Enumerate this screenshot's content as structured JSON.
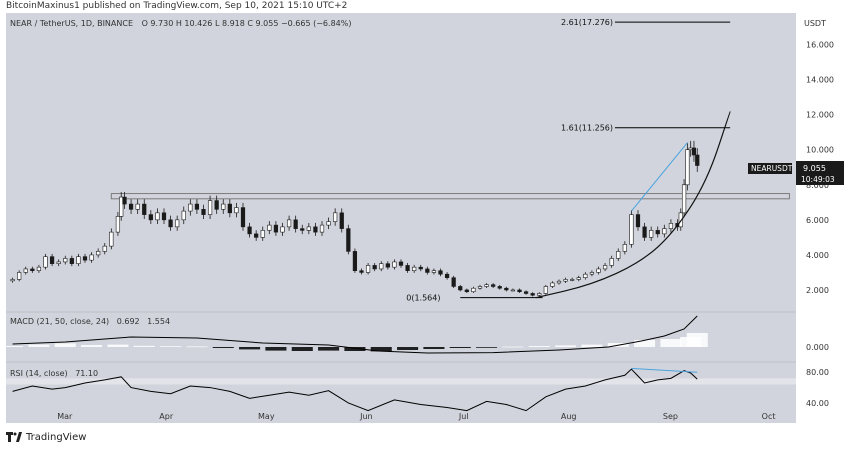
{
  "header": {
    "publisher_line": "BitcoinMaxinus1 published on TradingView.com, Sep 10, 2021 15:10 UTC+2"
  },
  "footer": {
    "brand": "TradingView"
  },
  "colors": {
    "background": "#d1d4dc",
    "candle": "#1a1a1a",
    "fib_line": "#000000",
    "resistance": "#7b7b7b",
    "trendline_blue": "#4aa3df",
    "macd_hist_pos": "#ffffff",
    "macd_hist_neg": "#000000",
    "price_tag_bg": "#1a1a1a",
    "price_tag_text": "#ffffff"
  },
  "chart_data": {
    "type": "candlestick",
    "symbol_line": {
      "pair": "NEAR / TetherUS, 1D, BINANCE",
      "ohlc": "O 9.730  H 10.426  L 8.918  C 9.055  −0.665 (−6.84%)"
    },
    "y_axis": {
      "unit": "USDT",
      "ticks": [
        "16.000",
        "14.000",
        "12.000",
        "10.000",
        "8.000",
        "6.000",
        "4.000",
        "2.000"
      ],
      "tick_values": [
        16,
        14,
        12,
        10,
        8,
        6,
        4,
        2
      ],
      "ylim": [
        0.8,
        17.8
      ]
    },
    "x_axis": {
      "tick_labels": [
        "Mar",
        "Apr",
        "May",
        "Jun",
        "Jul",
        "Aug",
        "Sep",
        "Oct"
      ],
      "tick_day_index": [
        0,
        31,
        61,
        92,
        122,
        153,
        184,
        214
      ],
      "first_day": "2021-03-01",
      "last_visible_day": 214
    },
    "price_tag": {
      "value": "9.055",
      "countdown": "10:49:03",
      "label": "NEARUSDT"
    },
    "fib_levels": [
      {
        "label": "2.61(17.276)",
        "value": 17.276
      },
      {
        "label": "1.61(11.256)",
        "value": 11.256
      },
      {
        "label": "0(1.564)",
        "value": 1.564
      }
    ],
    "resistance_zone": [
      7.2,
      7.5
    ],
    "parabolic_curve_points": [
      [
        143,
        1.56
      ],
      [
        160,
        2.3
      ],
      [
        175,
        3.6
      ],
      [
        185,
        5.3
      ],
      [
        195,
        8.2
      ],
      [
        202,
        12.2
      ]
    ],
    "blue_trendlines": [
      {
        "from": [
          172,
          6.5
        ],
        "to": [
          189,
          10.4
        ]
      }
    ],
    "candles_close": [
      [
        -16,
        2.6
      ],
      [
        -14,
        3.0
      ],
      [
        -12,
        3.2
      ],
      [
        -10,
        3.1
      ],
      [
        -8,
        3.3
      ],
      [
        -6,
        3.9
      ],
      [
        -4,
        3.5
      ],
      [
        -2,
        3.6
      ],
      [
        0,
        3.8
      ],
      [
        2,
        3.5
      ],
      [
        4,
        3.9
      ],
      [
        6,
        3.7
      ],
      [
        8,
        4.0
      ],
      [
        10,
        4.2
      ],
      [
        12,
        4.5
      ],
      [
        14,
        5.3
      ],
      [
        16,
        6.2
      ],
      [
        17,
        7.3
      ],
      [
        18,
        6.9
      ],
      [
        20,
        6.6
      ],
      [
        22,
        6.9
      ],
      [
        24,
        6.3
      ],
      [
        26,
        6.0
      ],
      [
        28,
        6.4
      ],
      [
        30,
        6.0
      ],
      [
        32,
        5.6
      ],
      [
        34,
        6.0
      ],
      [
        36,
        6.5
      ],
      [
        38,
        6.9
      ],
      [
        40,
        6.6
      ],
      [
        42,
        6.3
      ],
      [
        44,
        7.1
      ],
      [
        46,
        6.6
      ],
      [
        48,
        6.9
      ],
      [
        50,
        6.4
      ],
      [
        52,
        6.7
      ],
      [
        54,
        5.6
      ],
      [
        56,
        5.2
      ],
      [
        58,
        5.0
      ],
      [
        60,
        5.4
      ],
      [
        62,
        5.7
      ],
      [
        64,
        5.3
      ],
      [
        66,
        5.6
      ],
      [
        68,
        6.0
      ],
      [
        70,
        5.5
      ],
      [
        72,
        5.4
      ],
      [
        74,
        5.6
      ],
      [
        76,
        5.3
      ],
      [
        78,
        5.7
      ],
      [
        80,
        5.9
      ],
      [
        82,
        6.4
      ],
      [
        84,
        5.5
      ],
      [
        86,
        4.2
      ],
      [
        88,
        3.1
      ],
      [
        90,
        3.0
      ],
      [
        92,
        3.4
      ],
      [
        94,
        3.2
      ],
      [
        96,
        3.5
      ],
      [
        98,
        3.3
      ],
      [
        100,
        3.6
      ],
      [
        102,
        3.4
      ],
      [
        104,
        3.1
      ],
      [
        106,
        3.3
      ],
      [
        108,
        3.2
      ],
      [
        110,
        3.0
      ],
      [
        112,
        3.1
      ],
      [
        114,
        2.9
      ],
      [
        116,
        2.7
      ],
      [
        118,
        2.2
      ],
      [
        120,
        2.0
      ],
      [
        122,
        1.9
      ],
      [
        124,
        2.1
      ],
      [
        126,
        2.2
      ],
      [
        128,
        2.3
      ],
      [
        130,
        2.2
      ],
      [
        132,
        2.1
      ],
      [
        134,
        2.0
      ],
      [
        136,
        2.0
      ],
      [
        138,
        1.9
      ],
      [
        140,
        1.8
      ],
      [
        142,
        1.7
      ],
      [
        144,
        1.8
      ],
      [
        146,
        2.2
      ],
      [
        148,
        2.4
      ],
      [
        150,
        2.5
      ],
      [
        152,
        2.6
      ],
      [
        154,
        2.6
      ],
      [
        156,
        2.7
      ],
      [
        158,
        2.9
      ],
      [
        160,
        3.0
      ],
      [
        162,
        3.2
      ],
      [
        164,
        3.4
      ],
      [
        166,
        3.8
      ],
      [
        168,
        4.2
      ],
      [
        170,
        4.6
      ],
      [
        172,
        6.3
      ],
      [
        174,
        5.6
      ],
      [
        176,
        5.0
      ],
      [
        178,
        5.4
      ],
      [
        180,
        5.2
      ],
      [
        182,
        5.5
      ],
      [
        184,
        5.8
      ],
      [
        186,
        5.6
      ],
      [
        187,
        6.4
      ],
      [
        188,
        8.0
      ],
      [
        189,
        10.0
      ],
      [
        190,
        10.1
      ],
      [
        191,
        9.7
      ],
      [
        192,
        9.1
      ]
    ],
    "macd": {
      "label": "MACD (21, 50, close, 24)",
      "value_1": "0.692",
      "value_2": "1.554",
      "ticks": [
        "0.000"
      ],
      "tick_values": [
        0
      ],
      "ylim": [
        -0.7,
        1.7
      ],
      "macd_line": [
        [
          -16,
          0.15
        ],
        [
          0,
          0.25
        ],
        [
          20,
          0.5
        ],
        [
          40,
          0.45
        ],
        [
          60,
          0.2
        ],
        [
          80,
          0.1
        ],
        [
          95,
          -0.2
        ],
        [
          110,
          -0.3
        ],
        [
          130,
          -0.28
        ],
        [
          150,
          -0.15
        ],
        [
          165,
          0.0
        ],
        [
          175,
          0.3
        ],
        [
          182,
          0.55
        ],
        [
          188,
          0.9
        ],
        [
          192,
          1.55
        ]
      ],
      "histogram": [
        [
          -16,
          0.05
        ],
        [
          -8,
          0.12
        ],
        [
          0,
          0.18
        ],
        [
          8,
          0.1
        ],
        [
          16,
          0.12
        ],
        [
          24,
          0.06
        ],
        [
          32,
          0.04
        ],
        [
          40,
          0.03
        ],
        [
          48,
          -0.05
        ],
        [
          56,
          -0.12
        ],
        [
          64,
          -0.18
        ],
        [
          72,
          -0.2
        ],
        [
          80,
          -0.18
        ],
        [
          88,
          -0.2
        ],
        [
          96,
          -0.22
        ],
        [
          104,
          -0.15
        ],
        [
          112,
          -0.1
        ],
        [
          120,
          -0.05
        ],
        [
          128,
          -0.02
        ],
        [
          136,
          0.02
        ],
        [
          144,
          0.05
        ],
        [
          152,
          0.08
        ],
        [
          160,
          0.12
        ],
        [
          168,
          0.2
        ],
        [
          176,
          0.35
        ],
        [
          184,
          0.4
        ],
        [
          190,
          0.5
        ],
        [
          192,
          0.7
        ]
      ]
    },
    "rsi": {
      "label": "RSI (14, close)",
      "value": "71.10",
      "ticks": [
        "80.00",
        "40.00"
      ],
      "tick_values": [
        80,
        40
      ],
      "ylim": [
        36,
        92
      ],
      "band": [
        30,
        70
      ],
      "line": [
        [
          -16,
          55
        ],
        [
          -10,
          62
        ],
        [
          -4,
          58
        ],
        [
          0,
          60
        ],
        [
          6,
          66
        ],
        [
          12,
          70
        ],
        [
          17,
          74
        ],
        [
          20,
          60
        ],
        [
          26,
          55
        ],
        [
          32,
          52
        ],
        [
          38,
          62
        ],
        [
          44,
          60
        ],
        [
          50,
          55
        ],
        [
          56,
          46
        ],
        [
          62,
          50
        ],
        [
          68,
          54
        ],
        [
          74,
          50
        ],
        [
          80,
          56
        ],
        [
          86,
          40
        ],
        [
          92,
          30
        ],
        [
          100,
          44
        ],
        [
          108,
          38
        ],
        [
          116,
          34
        ],
        [
          122,
          30
        ],
        [
          128,
          42
        ],
        [
          134,
          38
        ],
        [
          140,
          30
        ],
        [
          146,
          48
        ],
        [
          152,
          58
        ],
        [
          158,
          62
        ],
        [
          164,
          70
        ],
        [
          170,
          76
        ],
        [
          172,
          84
        ],
        [
          176,
          66
        ],
        [
          180,
          70
        ],
        [
          184,
          72
        ],
        [
          188,
          82
        ],
        [
          190,
          79
        ],
        [
          192,
          71
        ]
      ],
      "divergence_line": {
        "from": [
          172,
          85
        ],
        "to": [
          192,
          80
        ]
      }
    }
  }
}
